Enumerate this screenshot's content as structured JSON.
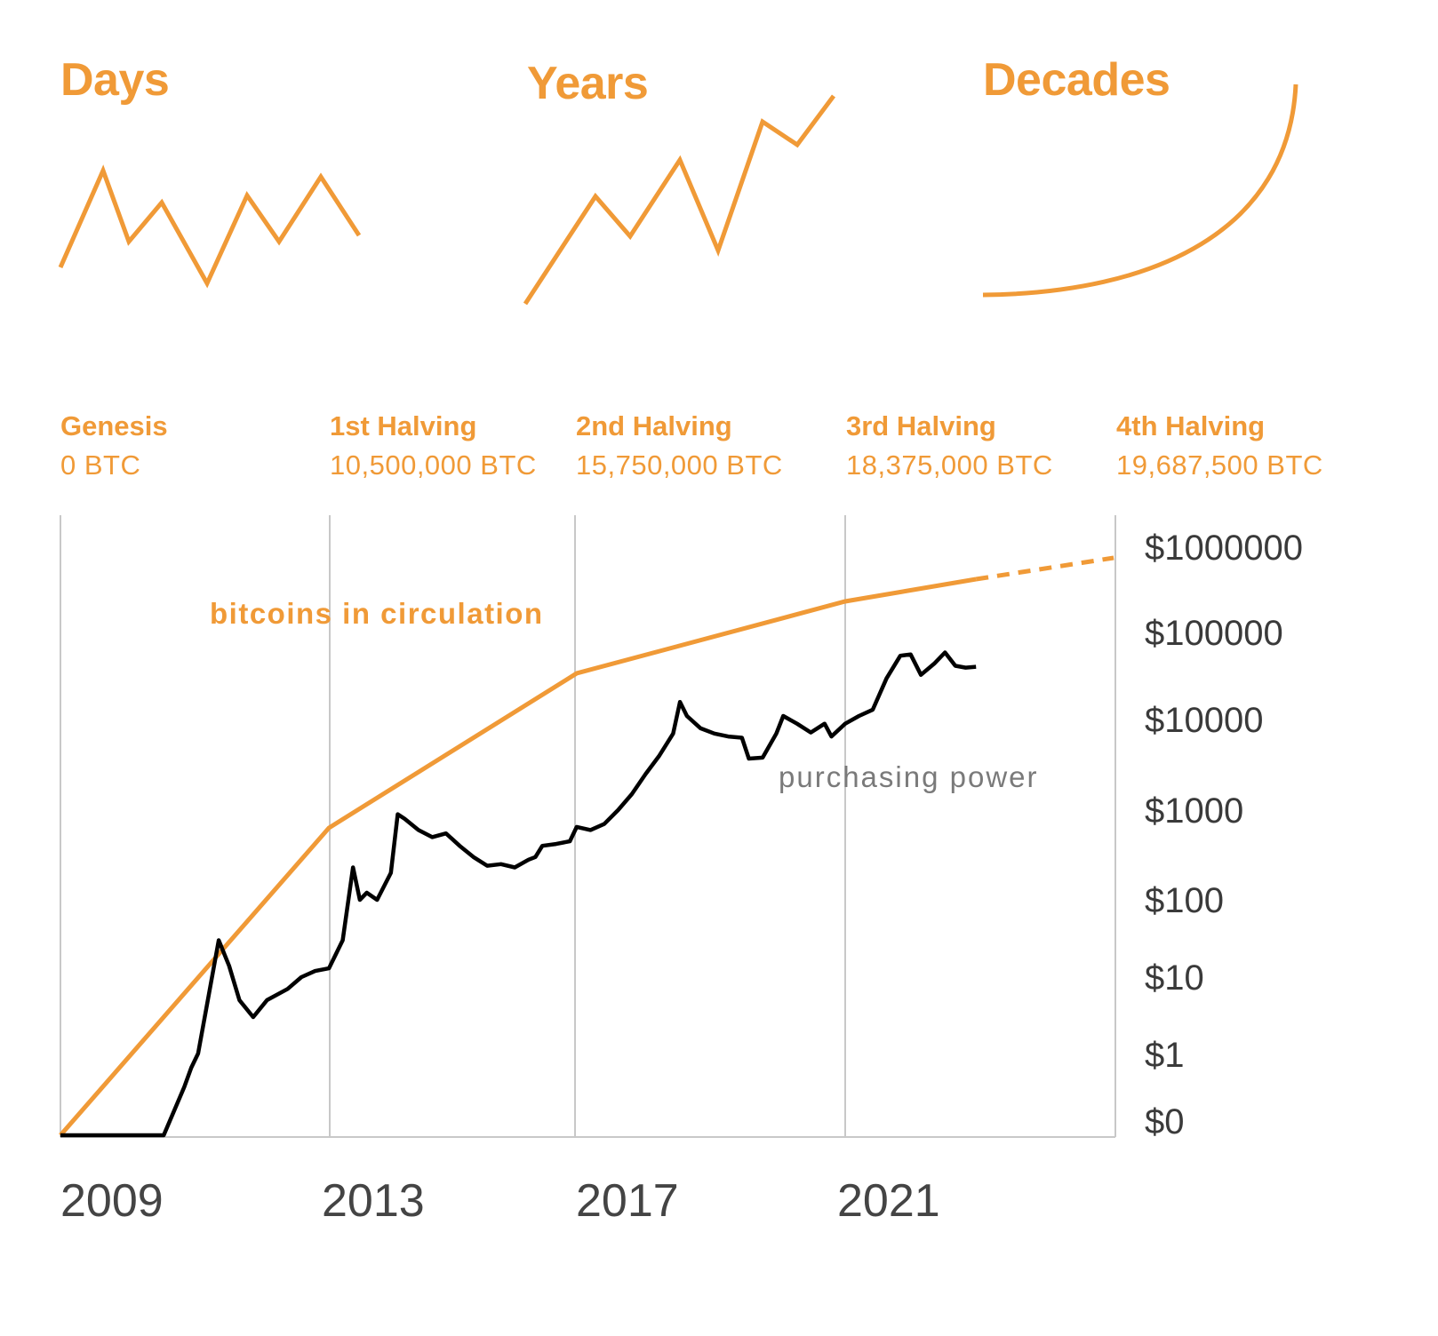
{
  "headings": {
    "days": "Days",
    "years": "Years",
    "decades": "Decades"
  },
  "brand_color": "#F09A37",
  "milestones": [
    {
      "name": "Genesis",
      "btc": "0 BTC"
    },
    {
      "name": "1st Halving",
      "btc": "10,500,000 BTC"
    },
    {
      "name": "2nd Halving",
      "btc": "15,750,000 BTC"
    },
    {
      "name": "3rd Halving",
      "btc": "18,375,000 BTC"
    },
    {
      "name": "4th Halving",
      "btc": "19,687,500 BTC"
    }
  ],
  "chart_data": {
    "type": "line",
    "title": "",
    "xlabel": "",
    "ylabel": "",
    "y_scale": "log",
    "x_ticks": [
      "2009",
      "2013",
      "2017",
      "2021"
    ],
    "y_ticks": [
      "$1000000",
      "$100000",
      "$10000",
      "$1000",
      "$100",
      "$10",
      "$1",
      "$0"
    ],
    "grid": "vertical lines at halvings",
    "series": [
      {
        "name": "bitcoins in circulation",
        "color": "#F09A37",
        "points": [
          [
            2009.0,
            0
          ],
          [
            2012.9,
            10500000
          ],
          [
            2016.5,
            15750000
          ],
          [
            2020.4,
            18375000
          ],
          [
            2022.3,
            19200000
          ]
        ],
        "projected": [
          [
            2022.3,
            19200000
          ],
          [
            2024.3,
            19687500
          ]
        ]
      },
      {
        "name": "purchasing power",
        "color": "#000000",
        "points": [
          [
            2009.0,
            0
          ],
          [
            2010.5,
            0
          ],
          [
            2010.8,
            0.06
          ],
          [
            2010.9,
            0.3
          ],
          [
            2011.0,
            1
          ],
          [
            2011.3,
            30
          ],
          [
            2011.45,
            14
          ],
          [
            2011.6,
            5
          ],
          [
            2011.8,
            3
          ],
          [
            2012.0,
            5
          ],
          [
            2012.3,
            7
          ],
          [
            2012.5,
            10
          ],
          [
            2012.7,
            12
          ],
          [
            2012.9,
            13
          ],
          [
            2013.1,
            30
          ],
          [
            2013.25,
            230
          ],
          [
            2013.35,
            100
          ],
          [
            2013.45,
            120
          ],
          [
            2013.6,
            100
          ],
          [
            2013.8,
            200
          ],
          [
            2013.9,
            900
          ],
          [
            2014.0,
            800
          ],
          [
            2014.2,
            600
          ],
          [
            2014.4,
            500
          ],
          [
            2014.6,
            550
          ],
          [
            2014.8,
            400
          ],
          [
            2015.0,
            300
          ],
          [
            2015.2,
            240
          ],
          [
            2015.4,
            250
          ],
          [
            2015.6,
            230
          ],
          [
            2015.8,
            280
          ],
          [
            2015.9,
            300
          ],
          [
            2016.0,
            400
          ],
          [
            2016.2,
            420
          ],
          [
            2016.4,
            450
          ],
          [
            2016.5,
            650
          ],
          [
            2016.7,
            600
          ],
          [
            2016.9,
            700
          ],
          [
            2017.1,
            1000
          ],
          [
            2017.3,
            1500
          ],
          [
            2017.5,
            2500
          ],
          [
            2017.7,
            4000
          ],
          [
            2017.9,
            7000
          ],
          [
            2018.0,
            16000
          ],
          [
            2018.1,
            11000
          ],
          [
            2018.3,
            8000
          ],
          [
            2018.5,
            7000
          ],
          [
            2018.7,
            6500
          ],
          [
            2018.9,
            6300
          ],
          [
            2019.0,
            3700
          ],
          [
            2019.2,
            3800
          ],
          [
            2019.4,
            7000
          ],
          [
            2019.5,
            11000
          ],
          [
            2019.7,
            9000
          ],
          [
            2019.9,
            7200
          ],
          [
            2020.1,
            9000
          ],
          [
            2020.2,
            6500
          ],
          [
            2020.4,
            9000
          ],
          [
            2020.6,
            11000
          ],
          [
            2020.8,
            13000
          ],
          [
            2021.0,
            30000
          ],
          [
            2021.2,
            55000
          ],
          [
            2021.35,
            57000
          ],
          [
            2021.5,
            33000
          ],
          [
            2021.7,
            45000
          ],
          [
            2021.85,
            60000
          ],
          [
            2022.0,
            42000
          ],
          [
            2022.15,
            40000
          ],
          [
            2022.3,
            41000
          ]
        ]
      }
    ]
  }
}
